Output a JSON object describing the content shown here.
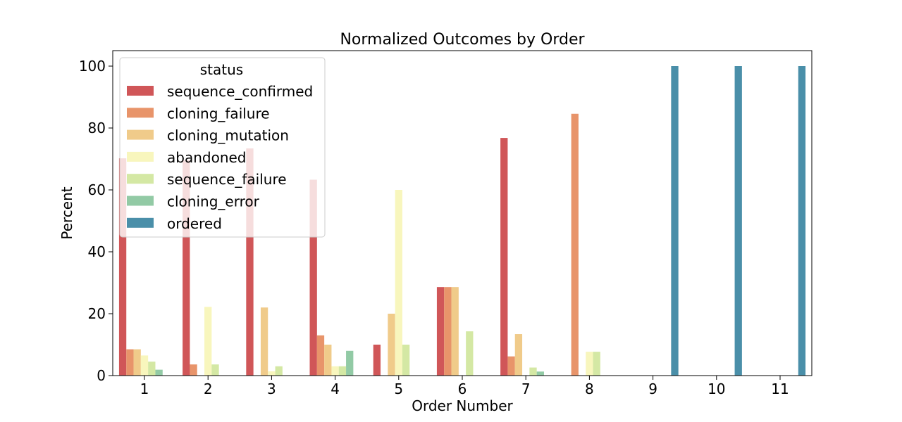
{
  "chart_data": {
    "type": "bar",
    "title": "Normalized Outcomes by Order",
    "xlabel": "Order Number",
    "ylabel": "Percent",
    "ylim": [
      0,
      105
    ],
    "yticks": [
      0,
      20,
      40,
      60,
      80,
      100
    ],
    "grid": false,
    "categories": [
      "1",
      "2",
      "3",
      "4",
      "5",
      "6",
      "7",
      "8",
      "9",
      "10",
      "11"
    ],
    "legend": {
      "title": "status",
      "placement": "upper-left"
    },
    "series": [
      {
        "name": "sequence_confirmed",
        "color": "#d05658",
        "values": [
          70.2,
          69.6,
          73.4,
          63.3,
          10.0,
          28.6,
          76.8,
          0,
          0,
          0,
          0
        ]
      },
      {
        "name": "cloning_failure",
        "color": "#e8946a",
        "values": [
          8.5,
          3.6,
          0,
          13.0,
          0,
          28.6,
          6.2,
          84.6,
          0,
          0,
          0
        ]
      },
      {
        "name": "cloning_mutation",
        "color": "#f0cb8a",
        "values": [
          8.5,
          0,
          22.0,
          10.0,
          20.0,
          28.6,
          13.4,
          0,
          0,
          0,
          0
        ]
      },
      {
        "name": "abandoned",
        "color": "#f8f6bd",
        "values": [
          6.5,
          22.2,
          1.4,
          3.0,
          60.0,
          0,
          0,
          7.7,
          0,
          0,
          0
        ]
      },
      {
        "name": "sequence_failure",
        "color": "#d4e8a4",
        "values": [
          4.5,
          3.6,
          3.0,
          3.0,
          10.0,
          14.3,
          2.6,
          7.7,
          0,
          0,
          0
        ]
      },
      {
        "name": "cloning_error",
        "color": "#92caa5",
        "values": [
          1.9,
          0,
          0,
          8.0,
          0,
          0,
          1.3,
          0,
          0,
          0,
          0
        ]
      },
      {
        "name": "ordered",
        "color": "#4a8fa9",
        "values": [
          0,
          0,
          0,
          0,
          0,
          0,
          0,
          0,
          100,
          100,
          100
        ]
      }
    ]
  }
}
